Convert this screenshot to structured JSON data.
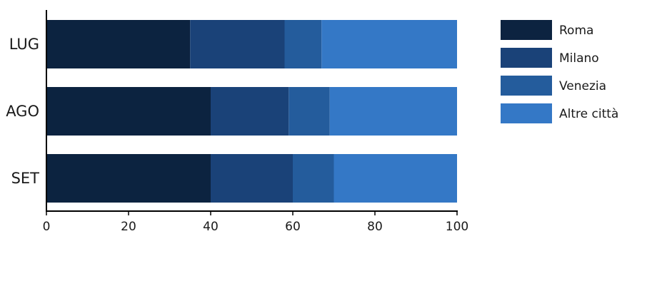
{
  "chart_data": {
    "type": "bar",
    "orientation": "horizontal",
    "stacked": true,
    "categories": [
      "LUG",
      "AGO",
      "SET"
    ],
    "series": [
      {
        "name": "Roma",
        "values": [
          35,
          40,
          40
        ],
        "color": "#0c2340"
      },
      {
        "name": "Milano",
        "values": [
          23,
          19,
          20
        ],
        "color": "#1a4278"
      },
      {
        "name": "Venezia",
        "values": [
          9,
          10,
          10
        ],
        "color": "#245c9c"
      },
      {
        "name": "Altre città",
        "values": [
          33,
          31,
          30
        ],
        "color": "#3478c6"
      }
    ],
    "xlim": [
      0,
      100
    ],
    "xticks": [
      0,
      20,
      40,
      60,
      80,
      100
    ],
    "title": "",
    "xlabel": "",
    "ylabel": "",
    "grid": false,
    "legend_position": "top-right"
  }
}
